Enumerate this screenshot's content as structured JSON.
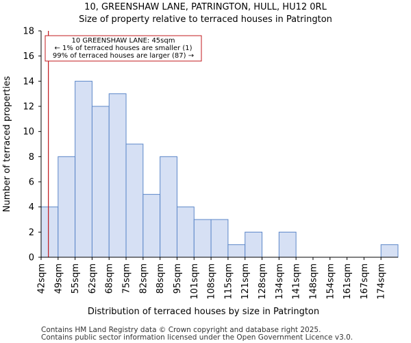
{
  "chart_data": {
    "type": "bar",
    "title": "10, GREENSHAW LANE, PATRINGTON, HULL, HU12 0RL",
    "subtitle": "Size of property relative to terraced houses in Patrington",
    "xlabel": "Distribution of terraced houses by size in Patrington",
    "ylabel": "Number of terraced properties",
    "categories": [
      "42sqm",
      "49sqm",
      "55sqm",
      "62sqm",
      "68sqm",
      "75sqm",
      "82sqm",
      "88sqm",
      "95sqm",
      "101sqm",
      "108sqm",
      "115sqm",
      "121sqm",
      "128sqm",
      "134sqm",
      "141sqm",
      "148sqm",
      "154sqm",
      "161sqm",
      "167sqm",
      "174sqm"
    ],
    "values": [
      4,
      8,
      14,
      12,
      13,
      9,
      5,
      8,
      4,
      3,
      3,
      1,
      2,
      0,
      2,
      0,
      0,
      0,
      0,
      0,
      1
    ],
    "ylim": [
      0,
      18
    ],
    "yticks": [
      0,
      2,
      4,
      6,
      8,
      10,
      12,
      14,
      16,
      18
    ],
    "bar_color": "#d6e0f4",
    "bar_edge_color": "#5b86c8",
    "marker": {
      "value_sqm": 45,
      "color": "#c0181c",
      "lines": [
        "10 GREENSHAW LANE: 45sqm",
        "← 1% of terraced houses are smaller (1)",
        "99% of terraced houses are larger (87) →"
      ]
    },
    "footer": [
      "Contains HM Land Registry data © Crown copyright and database right 2025.",
      "Contains public sector information licensed under the Open Government Licence v3.0."
    ]
  }
}
